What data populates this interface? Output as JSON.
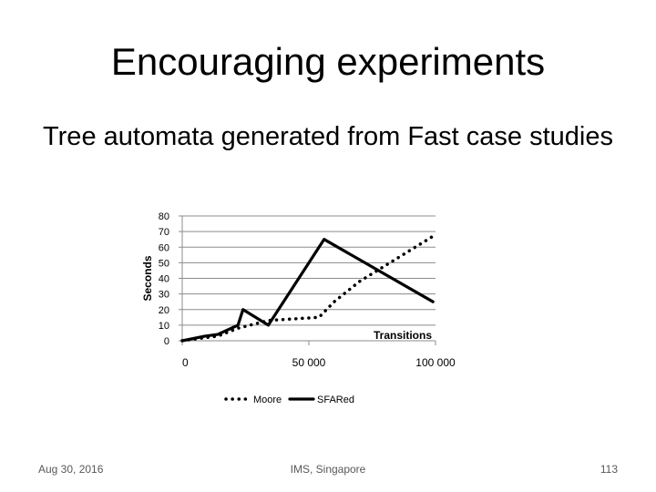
{
  "slide": {
    "title": "Encouraging experiments",
    "subtitle": "Tree automata generated from Fast case studies"
  },
  "footer": {
    "date": "Aug 30, 2016",
    "venue": "IMS, Singapore",
    "page": "113"
  },
  "chart_data": {
    "type": "line",
    "xlabel": "Transitions",
    "ylabel": "Seconds",
    "xlim": [
      0,
      100000
    ],
    "ylim": [
      0,
      80
    ],
    "x_ticks": [
      0,
      50000,
      100000
    ],
    "x_tick_labels": [
      "0",
      "50 000",
      "100 000"
    ],
    "y_ticks": [
      0,
      10,
      20,
      30,
      40,
      50,
      60,
      70,
      80
    ],
    "y_tick_labels": [
      "0",
      "10",
      "20",
      "30",
      "40",
      "50",
      "60",
      "70",
      "80"
    ],
    "grid": true,
    "legend_position": "bottom",
    "series": [
      {
        "name": "Moore",
        "style": "dotted",
        "color": "#000000",
        "points": [
          [
            0,
            0
          ],
          [
            9000,
            2
          ],
          [
            14000,
            3
          ],
          [
            22000,
            8
          ],
          [
            34000,
            13
          ],
          [
            54000,
            15
          ],
          [
            60000,
            25
          ],
          [
            70000,
            38
          ],
          [
            80000,
            48
          ],
          [
            90000,
            58
          ],
          [
            99000,
            67
          ]
        ]
      },
      {
        "name": "SFARed",
        "style": "solid",
        "color": "#000000",
        "points": [
          [
            0,
            0
          ],
          [
            9000,
            3
          ],
          [
            14000,
            4
          ],
          [
            22000,
            10
          ],
          [
            24000,
            20
          ],
          [
            34000,
            10
          ],
          [
            56000,
            65
          ],
          [
            99000,
            25
          ]
        ]
      }
    ]
  }
}
